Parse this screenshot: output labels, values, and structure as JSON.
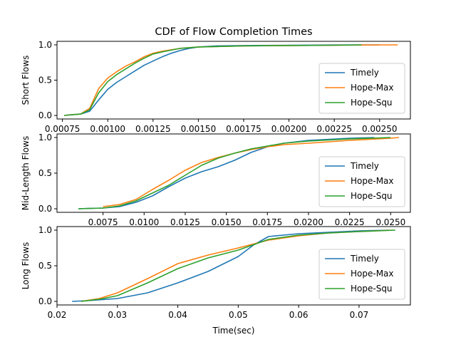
{
  "figure": {
    "title": "CDF of Flow Completion Times",
    "xlabel": "Time(sec)"
  },
  "colors": {
    "Timely": "#1f77b4",
    "Hope-Max": "#ff7f0e",
    "Hope-Squ": "#2ca02c"
  },
  "chart_data": [
    {
      "type": "line",
      "ylabel": "Short Flows",
      "xlim": [
        0.00072,
        0.00267
      ],
      "ylim": [
        -0.05,
        1.05
      ],
      "xticks": [
        0.00075,
        0.001,
        0.00125,
        0.0015,
        0.00175,
        0.002,
        0.00225,
        0.0025
      ],
      "xtick_labels": [
        "0.00075",
        "0.00100",
        "0.00125",
        "0.00150",
        "0.00175",
        "0.00200",
        "0.00225",
        "0.00250"
      ],
      "yticks": [
        0.0,
        0.5,
        1.0
      ],
      "ytick_labels": [
        "0.0",
        "0.5",
        "1.0"
      ],
      "legend": "right",
      "series": [
        {
          "name": "Timely",
          "x": [
            0.00076,
            0.0008,
            0.00085,
            0.0009,
            0.00095,
            0.001,
            0.00105,
            0.0011,
            0.00115,
            0.0012,
            0.00125,
            0.0013,
            0.00135,
            0.0014,
            0.00145,
            0.0015,
            0.0016,
            0.00175,
            0.002,
            0.00225,
            0.0025
          ],
          "y": [
            0.0,
            0.01,
            0.02,
            0.06,
            0.22,
            0.37,
            0.47,
            0.55,
            0.63,
            0.71,
            0.77,
            0.83,
            0.88,
            0.92,
            0.95,
            0.97,
            0.985,
            0.99,
            0.995,
            1.0,
            1.0
          ]
        },
        {
          "name": "Hope-Max",
          "x": [
            0.00076,
            0.0008,
            0.00085,
            0.0009,
            0.00095,
            0.001,
            0.00105,
            0.0011,
            0.00115,
            0.0012,
            0.00125,
            0.0013,
            0.0014,
            0.0015,
            0.00175,
            0.002,
            0.00225,
            0.0025,
            0.0026
          ],
          "y": [
            0.0,
            0.01,
            0.02,
            0.1,
            0.38,
            0.53,
            0.62,
            0.7,
            0.76,
            0.83,
            0.88,
            0.91,
            0.95,
            0.97,
            0.985,
            0.99,
            0.995,
            1.0,
            1.0
          ]
        },
        {
          "name": "Hope-Squ",
          "x": [
            0.00076,
            0.0008,
            0.00085,
            0.0009,
            0.00095,
            0.001,
            0.00105,
            0.0011,
            0.00115,
            0.0012,
            0.00125,
            0.0013,
            0.0014,
            0.0015,
            0.00175,
            0.002,
            0.00225,
            0.0024
          ],
          "y": [
            0.0,
            0.01,
            0.02,
            0.08,
            0.32,
            0.48,
            0.58,
            0.66,
            0.74,
            0.81,
            0.87,
            0.9,
            0.95,
            0.97,
            0.985,
            0.99,
            0.995,
            1.0
          ]
        }
      ]
    },
    {
      "type": "line",
      "ylabel": "Mid-Length Flows",
      "xlim": [
        0.0047,
        0.0262
      ],
      "ylim": [
        -0.05,
        1.05
      ],
      "xticks": [
        0.0075,
        0.01,
        0.0125,
        0.015,
        0.0175,
        0.02,
        0.0225,
        0.025
      ],
      "xtick_labels": [
        "0.0075",
        "0.0100",
        "0.0125",
        "0.0150",
        "0.0175",
        "0.0200",
        "0.0225",
        "0.0250"
      ],
      "yticks": [
        0.0,
        0.5,
        1.0
      ],
      "ytick_labels": [
        "0.0",
        "0.5",
        "1.0"
      ],
      "legend": "right",
      "series": [
        {
          "name": "Timely",
          "x": [
            0.006,
            0.0075,
            0.0085,
            0.0095,
            0.0105,
            0.0115,
            0.0125,
            0.0135,
            0.0145,
            0.0155,
            0.0165,
            0.0175,
            0.0185,
            0.02,
            0.0225,
            0.024
          ],
          "y": [
            0.0,
            0.01,
            0.03,
            0.09,
            0.18,
            0.31,
            0.43,
            0.52,
            0.59,
            0.68,
            0.79,
            0.87,
            0.92,
            0.96,
            0.99,
            1.0
          ]
        },
        {
          "name": "Hope-Max",
          "x": [
            0.0075,
            0.0085,
            0.0095,
            0.0105,
            0.0115,
            0.0125,
            0.0135,
            0.0145,
            0.0155,
            0.0165,
            0.0175,
            0.0185,
            0.02,
            0.0225,
            0.025,
            0.0255
          ],
          "y": [
            0.03,
            0.06,
            0.13,
            0.27,
            0.4,
            0.54,
            0.65,
            0.72,
            0.78,
            0.83,
            0.87,
            0.9,
            0.92,
            0.96,
            0.99,
            1.0
          ]
        },
        {
          "name": "Hope-Squ",
          "x": [
            0.006,
            0.0075,
            0.0085,
            0.0095,
            0.0105,
            0.0115,
            0.0125,
            0.0135,
            0.0145,
            0.0155,
            0.0165,
            0.0175,
            0.0185,
            0.02,
            0.0225,
            0.025
          ],
          "y": [
            0.0,
            0.01,
            0.04,
            0.11,
            0.22,
            0.33,
            0.47,
            0.61,
            0.71,
            0.78,
            0.84,
            0.88,
            0.92,
            0.95,
            0.98,
            1.0
          ]
        }
      ]
    },
    {
      "type": "line",
      "ylabel": "Long Flows",
      "xlim": [
        0.02,
        0.0785
      ],
      "ylim": [
        -0.05,
        1.05
      ],
      "xticks": [
        0.02,
        0.03,
        0.04,
        0.05,
        0.06,
        0.07
      ],
      "xtick_labels": [
        "0.02",
        "0.03",
        "0.04",
        "0.05",
        "0.06",
        "0.07"
      ],
      "yticks": [
        0.0,
        0.5,
        1.0
      ],
      "ytick_labels": [
        "0.0",
        "0.5",
        "1.0"
      ],
      "legend": "right",
      "series": [
        {
          "name": "Timely",
          "x": [
            0.0225,
            0.025,
            0.03,
            0.035,
            0.04,
            0.045,
            0.05,
            0.0525,
            0.055,
            0.06,
            0.065,
            0.07,
            0.075
          ],
          "y": [
            0.0,
            0.01,
            0.04,
            0.12,
            0.26,
            0.42,
            0.63,
            0.79,
            0.91,
            0.95,
            0.97,
            0.99,
            1.0
          ]
        },
        {
          "name": "Hope-Max",
          "x": [
            0.024,
            0.027,
            0.03,
            0.035,
            0.04,
            0.045,
            0.05,
            0.055,
            0.06,
            0.065,
            0.07,
            0.0755
          ],
          "y": [
            0.0,
            0.04,
            0.12,
            0.32,
            0.53,
            0.65,
            0.75,
            0.86,
            0.92,
            0.96,
            0.98,
            1.0
          ]
        },
        {
          "name": "Hope-Squ",
          "x": [
            0.024,
            0.027,
            0.03,
            0.035,
            0.04,
            0.045,
            0.05,
            0.055,
            0.06,
            0.065,
            0.07,
            0.076
          ],
          "y": [
            0.0,
            0.03,
            0.08,
            0.26,
            0.46,
            0.61,
            0.72,
            0.87,
            0.93,
            0.96,
            0.98,
            1.0
          ]
        }
      ]
    }
  ]
}
